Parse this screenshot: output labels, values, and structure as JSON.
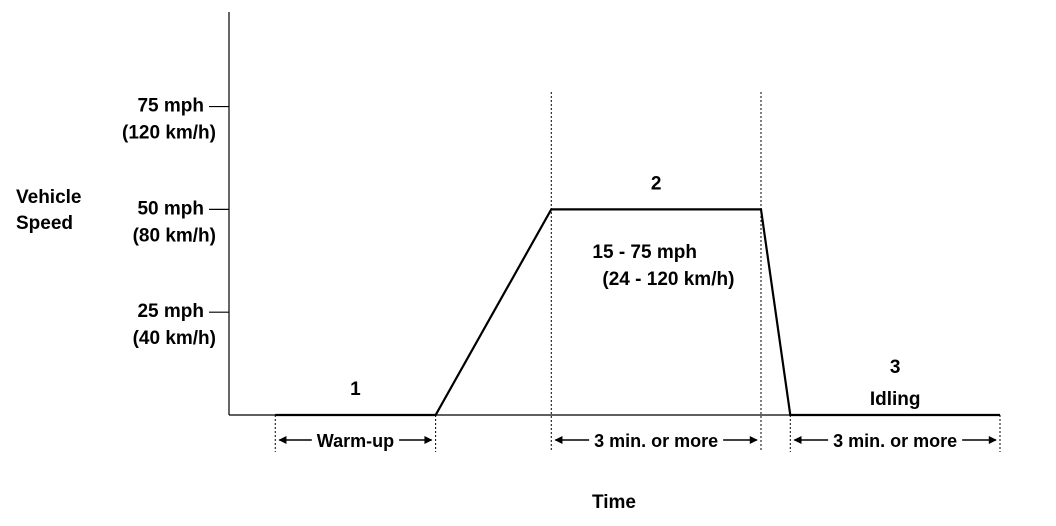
{
  "chart_data": {
    "type": "line",
    "ylabel_lines": [
      "Vehicle",
      "Speed"
    ],
    "xlabel": "Time",
    "y_ticks": [
      {
        "value": 75,
        "label": "75 mph",
        "sublabel": "(120 km/h)"
      },
      {
        "value": 50,
        "label": "50 mph",
        "sublabel": "(80 km/h)"
      },
      {
        "value": 25,
        "label": "25 mph",
        "sublabel": "(40 km/h)"
      }
    ],
    "ylim": [
      0,
      98
    ],
    "xlim": [
      0,
      1
    ],
    "series": [
      {
        "x": [
          0.06,
          0.268,
          0.418,
          0.69,
          0.728,
          1.0
        ],
        "y": [
          0,
          0,
          50,
          50,
          0,
          0
        ]
      }
    ],
    "phase_boundaries": [
      0.06,
      0.268,
      0.418,
      0.69,
      0.728,
      1.0
    ],
    "phases": [
      {
        "number": "1",
        "name": "",
        "x_center": 0.164,
        "y_level": 0
      },
      {
        "number": "2",
        "name": "",
        "x_center": 0.554,
        "y_level": 50
      },
      {
        "number": "3",
        "name": "Idling",
        "x_center": 0.864,
        "y_level": 0
      }
    ],
    "annotations": [
      {
        "line1": "15 - 75 mph",
        "line2": "(24 - 120 km/h)",
        "x": 0.448,
        "y": 37
      }
    ],
    "durations": [
      {
        "text": "Warm-up",
        "x_start": 0.06,
        "x_end": 0.268
      },
      {
        "text": "3 min. or  more",
        "x_start": 0.418,
        "x_end": 0.69
      },
      {
        "text": "3 min. or  more",
        "x_start": 0.728,
        "x_end": 1.0
      }
    ]
  }
}
